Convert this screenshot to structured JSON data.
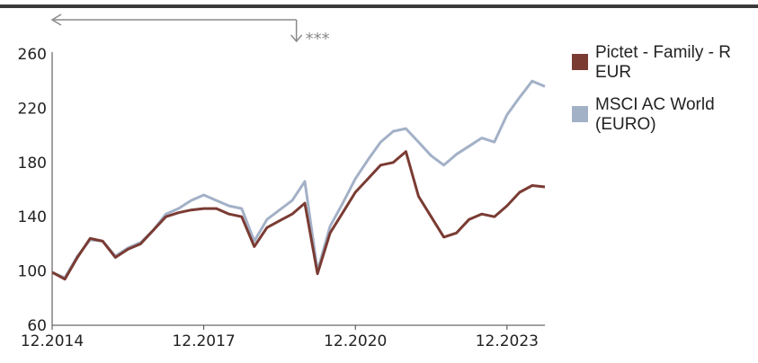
{
  "chart_data": {
    "type": "line",
    "title": "",
    "xlabel": "",
    "ylabel": "",
    "ylim": [
      60,
      260
    ],
    "yticks": [
      "60",
      "100",
      "140",
      "180",
      "220",
      "260"
    ],
    "xticks": [
      {
        "date": "2014-12",
        "label": "12.2014"
      },
      {
        "date": "2017-12",
        "label": "12.2017"
      },
      {
        "date": "2020-12",
        "label": "12.2020"
      },
      {
        "date": "2023-12",
        "label": "12.2023"
      }
    ],
    "x_range": [
      "2014-12",
      "2024-09"
    ],
    "annotation": {
      "text": "***",
      "date": "2019-10"
    },
    "legend_position": "right",
    "x": [
      "2014-12",
      "2015-03",
      "2015-06",
      "2015-09",
      "2015-12",
      "2016-03",
      "2016-06",
      "2016-09",
      "2016-12",
      "2017-03",
      "2017-06",
      "2017-09",
      "2017-12",
      "2018-03",
      "2018-06",
      "2018-09",
      "2018-12",
      "2019-03",
      "2019-06",
      "2019-09",
      "2019-12",
      "2020-03",
      "2020-06",
      "2020-09",
      "2020-12",
      "2021-03",
      "2021-06",
      "2021-09",
      "2021-12",
      "2022-03",
      "2022-06",
      "2022-09",
      "2022-12",
      "2023-03",
      "2023-06",
      "2023-09",
      "2023-12",
      "2024-03",
      "2024-06",
      "2024-09"
    ],
    "series": [
      {
        "name": "Pictet - Family - R EUR",
        "color": "#7a3b33",
        "values": [
          99,
          94,
          110,
          124,
          122,
          110,
          116,
          120,
          130,
          140,
          143,
          145,
          146,
          146,
          142,
          140,
          118,
          132,
          137,
          142,
          150,
          98,
          128,
          143,
          158,
          168,
          178,
          180,
          188,
          155,
          140,
          125,
          128,
          138,
          142,
          140,
          148,
          158,
          163,
          162
        ]
      },
      {
        "name": "MSCI AC World (EURO)",
        "color": "#a3b1c7",
        "values": [
          99,
          95,
          111,
          123,
          122,
          111,
          117,
          121,
          130,
          142,
          146,
          152,
          156,
          152,
          148,
          146,
          122,
          138,
          145,
          152,
          166,
          100,
          133,
          150,
          168,
          182,
          195,
          203,
          205,
          195,
          185,
          178,
          186,
          192,
          198,
          195,
          215,
          228,
          240,
          236
        ]
      }
    ]
  }
}
